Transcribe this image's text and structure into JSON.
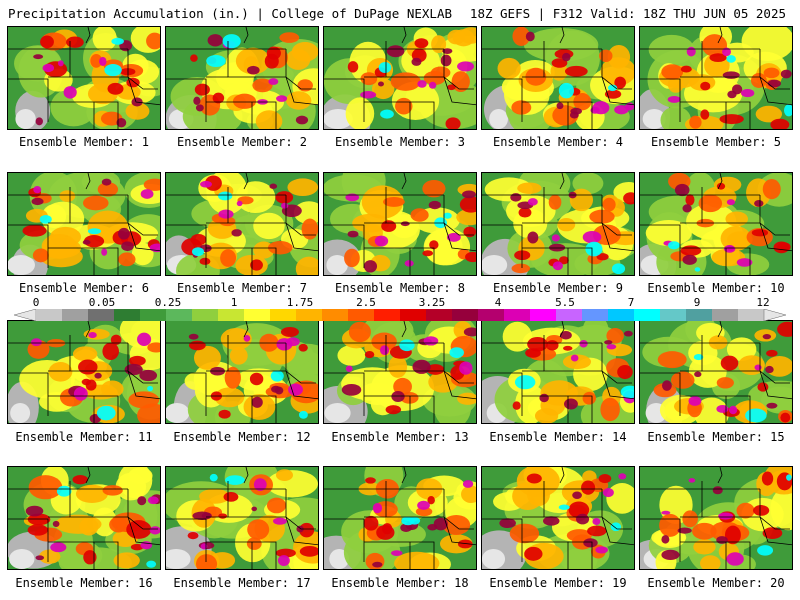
{
  "header": {
    "left": "Precipitation Accumulation (in.) | College of DuPage NEXLAB",
    "right": "18Z GEFS | F312 Valid: 18Z THU JUN 05 2025"
  },
  "colorbar": {
    "labels": [
      "0",
      "0.05",
      "0.25",
      "1",
      "1.75",
      "2.5",
      "3.25",
      "4",
      "5.5",
      "7",
      "9",
      "12"
    ],
    "colors": [
      "#e6e6e6",
      "#c8c8c8",
      "#a0a0a0",
      "#707070",
      "#2e7d32",
      "#3f9b3a",
      "#5cb85c",
      "#8fcf3e",
      "#c8e632",
      "#ffff32",
      "#ffd700",
      "#ffb400",
      "#ff8c00",
      "#ff5a00",
      "#ff1e00",
      "#e00000",
      "#b40028",
      "#96003c",
      "#b4006e",
      "#dc00b4",
      "#ff00ff",
      "#c864ff",
      "#6496ff",
      "#00c8ff",
      "#00ffff",
      "#64c8c8",
      "#50a0a0",
      "#a0a0a0",
      "#c8c8c8",
      "#e6e6e6"
    ]
  },
  "members": [
    {
      "label": "Ensemble Member: 1",
      "seed": 11
    },
    {
      "label": "Ensemble Member: 2",
      "seed": 23
    },
    {
      "label": "Ensemble Member: 3",
      "seed": 37
    },
    {
      "label": "Ensemble Member: 4",
      "seed": 41
    },
    {
      "label": "Ensemble Member: 5",
      "seed": 53
    },
    {
      "label": "Ensemble Member: 6",
      "seed": 67
    },
    {
      "label": "Ensemble Member: 7",
      "seed": 71
    },
    {
      "label": "Ensemble Member: 8",
      "seed": 83
    },
    {
      "label": "Ensemble Member: 9",
      "seed": 97
    },
    {
      "label": "Ensemble Member: 10",
      "seed": 101
    },
    {
      "label": "Ensemble Member: 11",
      "seed": 113
    },
    {
      "label": "Ensemble Member: 12",
      "seed": 127
    },
    {
      "label": "Ensemble Member: 13",
      "seed": 131
    },
    {
      "label": "Ensemble Member: 14",
      "seed": 149
    },
    {
      "label": "Ensemble Member: 15",
      "seed": 151
    },
    {
      "label": "Ensemble Member: 16",
      "seed": 163
    },
    {
      "label": "Ensemble Member: 17",
      "seed": 173
    },
    {
      "label": "Ensemble Member: 18",
      "seed": 181
    },
    {
      "label": "Ensemble Member: 19",
      "seed": 191
    },
    {
      "label": "Ensemble Member: 20",
      "seed": 199
    }
  ]
}
